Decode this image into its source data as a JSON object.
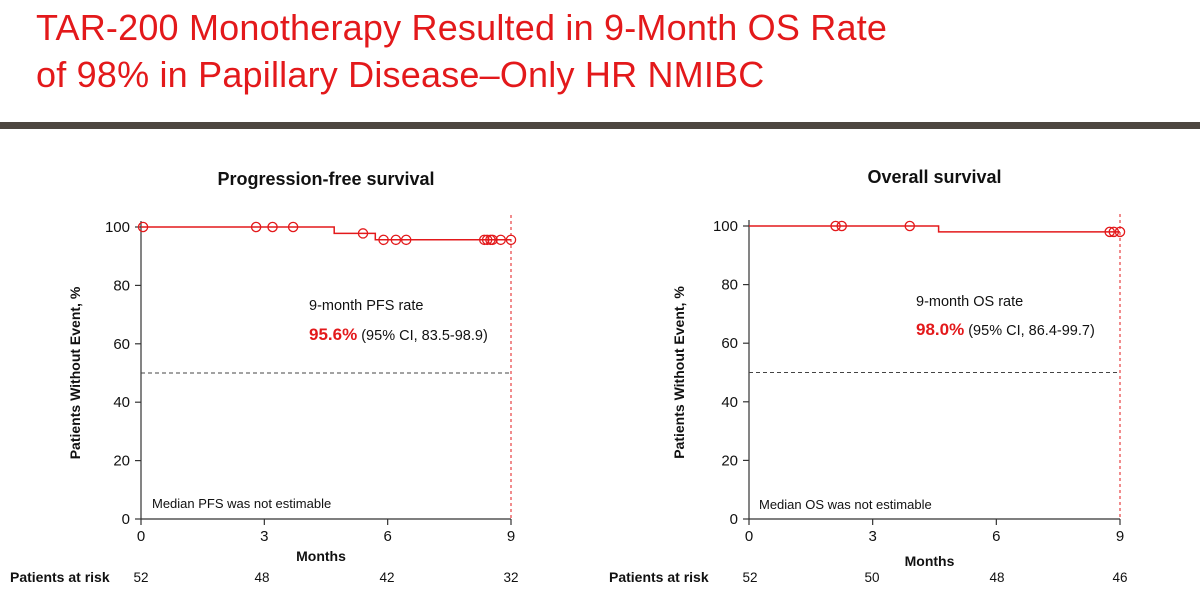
{
  "page": {
    "title_line1": "TAR-200 Monotherapy Resulted in 9-Month OS Rate",
    "title_line2": "of 98% in Papillary Disease–Only HR NMIBC",
    "accent_color": "#e3191b",
    "divider_color": "#4d4640"
  },
  "chart_data": [
    {
      "type": "line",
      "title": "Progression-free survival",
      "xlabel": "Months",
      "ylabel": "Patients Without Event, %",
      "xlim": [
        0,
        9
      ],
      "ylim": [
        0,
        100
      ],
      "x_ticks": [
        0,
        3,
        6,
        9
      ],
      "y_ticks": [
        0,
        20,
        40,
        60,
        80,
        100
      ],
      "grid": false,
      "series": [
        {
          "color": "#e3191b",
          "steps": [
            [
              0,
              100
            ],
            [
              4.7,
              100
            ],
            [
              4.7,
              97.8
            ],
            [
              5.7,
              97.8
            ],
            [
              5.7,
              95.6
            ],
            [
              9,
              95.6
            ]
          ],
          "censored": [
            [
              0.05,
              100
            ],
            [
              2.8,
              100
            ],
            [
              3.2,
              100
            ],
            [
              3.7,
              100
            ],
            [
              5.4,
              97.8
            ],
            [
              5.9,
              95.6
            ],
            [
              6.2,
              95.6
            ],
            [
              6.45,
              95.6
            ],
            [
              8.35,
              95.6
            ],
            [
              8.42,
              95.6
            ],
            [
              8.5,
              95.6
            ],
            [
              8.55,
              95.6
            ],
            [
              8.75,
              95.6
            ],
            [
              9.0,
              95.6
            ]
          ]
        }
      ],
      "median_line": 50,
      "annotation": {
        "label": "9-month PFS rate",
        "value": "95.6%",
        "ci": "(95% CI, 83.5-98.9)"
      },
      "median_note": "Median PFS was not estimable",
      "at_risk_label": "Patients at risk",
      "at_risk": [
        52,
        48,
        42,
        32
      ]
    },
    {
      "type": "line",
      "title": "Overall survival",
      "xlabel": "Months",
      "ylabel": "Patients Without Event, %",
      "xlim": [
        0,
        9
      ],
      "ylim": [
        0,
        100
      ],
      "x_ticks": [
        0,
        3,
        6,
        9
      ],
      "y_ticks": [
        0,
        20,
        40,
        60,
        80,
        100
      ],
      "grid": false,
      "series": [
        {
          "color": "#e3191b",
          "steps": [
            [
              0,
              100
            ],
            [
              4.6,
              100
            ],
            [
              4.6,
              98.0
            ],
            [
              9,
              98.0
            ]
          ],
          "censored": [
            [
              2.1,
              100
            ],
            [
              2.25,
              100
            ],
            [
              3.9,
              100
            ],
            [
              8.75,
              98.0
            ],
            [
              8.85,
              98.0
            ],
            [
              9.0,
              98.0
            ]
          ]
        }
      ],
      "median_line": 50,
      "annotation": {
        "label": "9-month OS rate",
        "value": "98.0%",
        "ci": "(95% CI, 86.4-99.7)"
      },
      "median_note": "Median OS was not estimable",
      "at_risk_label": "Patients at risk",
      "at_risk": [
        52,
        50,
        48,
        46
      ]
    }
  ]
}
